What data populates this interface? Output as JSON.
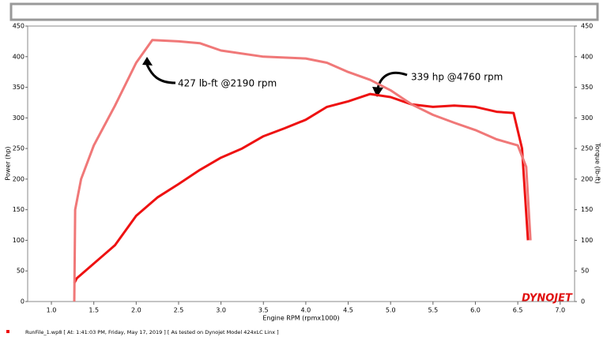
{
  "chart_data": {
    "type": "line",
    "x_label": "Engine RPM (rpmx1000)",
    "y_label": "Power (hp)",
    "y2_label": "Torque (lb-ft)",
    "annotations": [
      "427 lb-ft @2190 rpm",
      "339 hp @4760 rpm"
    ],
    "brand": "DYNOJET",
    "footer": "RunFile_1.wp8 [ At: 1:41:03 PM, Friday, May 17, 2019 ] [ As tested on Dynojet Model 424xLC Linx ]",
    "xlim": [
      0.72,
      7.17
    ],
    "xticks": [
      {
        "value": 1,
        "label": "1.0"
      },
      1.5,
      {
        "value": 2,
        "label": "2.0"
      },
      2.5,
      {
        "value": 3,
        "label": "3.0"
      },
      3.5,
      {
        "value": 4,
        "label": "4.0"
      },
      4.5,
      {
        "value": 5,
        "label": "5.0"
      },
      5.5,
      {
        "value": 6,
        "label": "6.0"
      },
      6.5,
      {
        "value": 7,
        "label": "7.0"
      }
    ],
    "ylim": [
      0,
      450
    ],
    "yticks": [
      0,
      50,
      100,
      150,
      200,
      250,
      300,
      350,
      400,
      450
    ],
    "y2lim": [
      0,
      450
    ],
    "y2ticks": [
      0,
      50,
      100,
      150,
      200,
      250,
      300,
      350,
      400,
      450
    ],
    "series": [
      {
        "name": "Power (hp)",
        "color": "#ee1111",
        "x": [
          1.27,
          1.3,
          1.5,
          1.75,
          2.0,
          2.25,
          2.5,
          2.75,
          3.0,
          3.25,
          3.5,
          3.75,
          4.0,
          4.25,
          4.5,
          4.76,
          5.0,
          5.25,
          5.5,
          5.75,
          6.0,
          6.25,
          6.45,
          6.55,
          6.62
        ],
        "values": [
          30,
          38,
          62,
          92,
          140,
          170,
          192,
          215,
          235,
          250,
          270,
          283,
          297,
          318,
          327,
          339,
          334,
          322,
          318,
          320,
          318,
          310,
          308,
          250,
          100
        ]
      },
      {
        "name": "Torque (lb-ft)",
        "color": "#f07878",
        "axis": "y2",
        "x": [
          1.27,
          1.28,
          1.35,
          1.5,
          1.75,
          2.0,
          2.19,
          2.5,
          2.75,
          3.0,
          3.5,
          4.0,
          4.25,
          4.5,
          4.76,
          5.0,
          5.25,
          5.5,
          5.75,
          6.0,
          6.25,
          6.5,
          6.6,
          6.65
        ],
        "values": [
          0,
          150,
          200,
          255,
          320,
          390,
          427,
          425,
          422,
          410,
          400,
          397,
          390,
          375,
          362,
          345,
          322,
          305,
          292,
          280,
          265,
          255,
          220,
          100
        ]
      }
    ]
  }
}
